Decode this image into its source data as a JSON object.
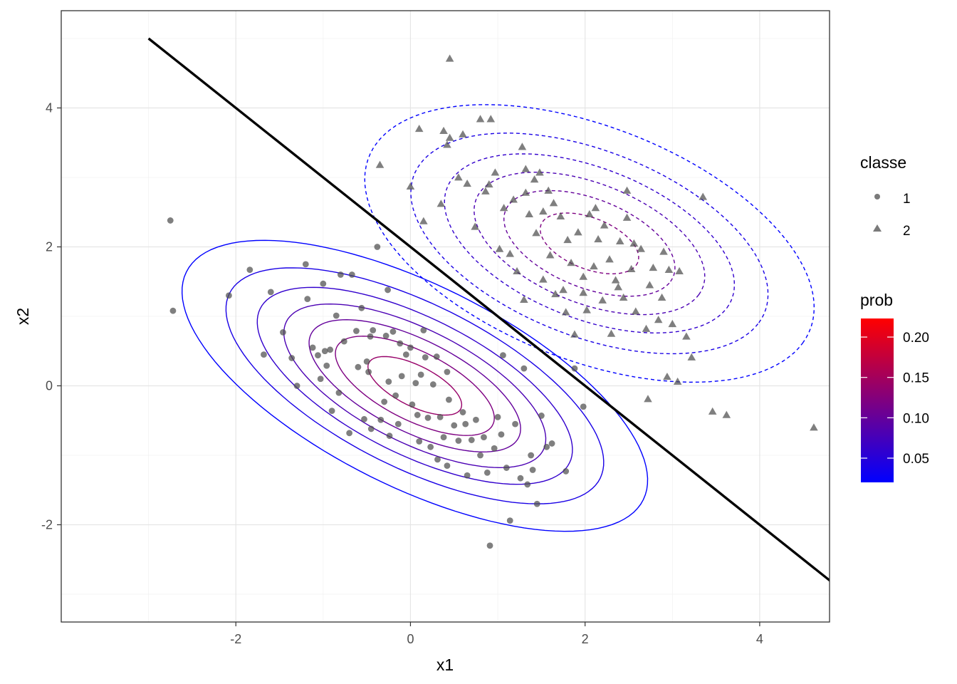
{
  "chart_data": {
    "type": "scatter",
    "xlabel": "x1",
    "ylabel": "x2",
    "xlim": [
      -4.0,
      4.8
    ],
    "ylim": [
      -3.4,
      5.4
    ],
    "x_ticks": [
      -2,
      0,
      2,
      4
    ],
    "y_ticks": [
      -2,
      0,
      2,
      4
    ],
    "x_tick_labels": [
      "-2",
      "0",
      "2",
      "4"
    ],
    "y_tick_labels": [
      "-2",
      "0",
      "2",
      "4"
    ],
    "grid": true,
    "legend_position": "right",
    "decision_boundary": {
      "x": [
        -3,
        5
      ],
      "y": [
        5,
        -3
      ],
      "color": "#000000"
    },
    "series": [
      {
        "name": "1",
        "marker": "circle",
        "color": "#4d4d4d",
        "points": [
          [
            -2.75,
            2.38
          ],
          [
            -2.72,
            1.08
          ],
          [
            -2.08,
            1.3
          ],
          [
            -1.84,
            1.67
          ],
          [
            -1.68,
            0.45
          ],
          [
            -1.6,
            1.35
          ],
          [
            -1.46,
            0.77
          ],
          [
            -1.36,
            0.4
          ],
          [
            -1.3,
            0.0
          ],
          [
            -1.2,
            1.75
          ],
          [
            -1.18,
            1.25
          ],
          [
            -1.12,
            0.55
          ],
          [
            -1.06,
            0.44
          ],
          [
            -1.03,
            0.1
          ],
          [
            -1.0,
            1.47
          ],
          [
            -0.98,
            0.5
          ],
          [
            -0.96,
            0.29
          ],
          [
            -0.92,
            0.52
          ],
          [
            -0.9,
            -0.36
          ],
          [
            -0.85,
            1.01
          ],
          [
            -0.8,
            1.6
          ],
          [
            -0.76,
            0.64
          ],
          [
            -0.7,
            -0.68
          ],
          [
            -0.67,
            1.6
          ],
          [
            -0.62,
            0.79
          ],
          [
            -0.6,
            0.27
          ],
          [
            -0.56,
            1.12
          ],
          [
            -0.53,
            -0.48
          ],
          [
            -0.48,
            0.2
          ],
          [
            -0.46,
            0.71
          ],
          [
            -0.45,
            -0.62
          ],
          [
            -0.43,
            0.8
          ],
          [
            -0.38,
            2.0
          ],
          [
            -0.34,
            -0.49
          ],
          [
            -0.3,
            -0.23
          ],
          [
            -0.28,
            0.72
          ],
          [
            -0.26,
            1.38
          ],
          [
            -0.25,
            0.06
          ],
          [
            -0.24,
            -0.72
          ],
          [
            -0.2,
            0.78
          ],
          [
            -0.17,
            -0.14
          ],
          [
            -0.14,
            -0.55
          ],
          [
            -0.12,
            0.61
          ],
          [
            -0.1,
            0.14
          ],
          [
            -0.05,
            0.45
          ],
          [
            0.0,
            0.55
          ],
          [
            0.02,
            -0.27
          ],
          [
            0.06,
            0.04
          ],
          [
            0.08,
            -0.42
          ],
          [
            0.1,
            -0.8
          ],
          [
            0.12,
            0.16
          ],
          [
            0.17,
            0.41
          ],
          [
            0.2,
            -0.46
          ],
          [
            0.23,
            -0.88
          ],
          [
            0.26,
            0.02
          ],
          [
            0.3,
            0.42
          ],
          [
            0.31,
            -1.06
          ],
          [
            0.34,
            -0.45
          ],
          [
            0.38,
            -0.74
          ],
          [
            0.42,
            -1.15
          ],
          [
            0.44,
            -0.2
          ],
          [
            0.5,
            -0.57
          ],
          [
            0.55,
            -0.79
          ],
          [
            0.6,
            -0.38
          ],
          [
            0.63,
            -0.55
          ],
          [
            0.65,
            -1.29
          ],
          [
            0.7,
            -0.78
          ],
          [
            0.75,
            -0.49
          ],
          [
            0.8,
            -1.0
          ],
          [
            0.84,
            -0.74
          ],
          [
            0.88,
            -1.25
          ],
          [
            0.91,
            -2.3
          ],
          [
            0.96,
            -0.9
          ],
          [
            1.0,
            -0.45
          ],
          [
            1.04,
            -0.7
          ],
          [
            1.06,
            0.44
          ],
          [
            1.1,
            -1.18
          ],
          [
            1.14,
            -1.94
          ],
          [
            1.2,
            -0.55
          ],
          [
            1.26,
            -1.33
          ],
          [
            1.3,
            0.25
          ],
          [
            1.34,
            -1.42
          ],
          [
            1.38,
            -1.0
          ],
          [
            1.4,
            -1.21
          ],
          [
            1.45,
            -1.7
          ],
          [
            1.5,
            -0.43
          ],
          [
            1.56,
            -0.88
          ],
          [
            1.62,
            -0.83
          ],
          [
            1.88,
            0.25
          ],
          [
            1.98,
            -0.3
          ],
          [
            1.78,
            -1.23
          ],
          [
            0.15,
            0.8
          ],
          [
            -0.5,
            0.35
          ],
          [
            0.42,
            0.2
          ],
          [
            -0.82,
            -0.1
          ]
        ]
      },
      {
        "name": "2",
        "marker": "triangle",
        "color": "#4d4d4d",
        "points": [
          [
            -0.35,
            3.18
          ],
          [
            0.0,
            2.87
          ],
          [
            0.1,
            3.7
          ],
          [
            0.15,
            2.37
          ],
          [
            0.35,
            2.62
          ],
          [
            0.38,
            3.67
          ],
          [
            0.42,
            3.47
          ],
          [
            0.45,
            3.57
          ],
          [
            0.45,
            4.71
          ],
          [
            0.55,
            3.0
          ],
          [
            0.6,
            3.62
          ],
          [
            0.65,
            2.91
          ],
          [
            0.74,
            2.29
          ],
          [
            0.8,
            3.84
          ],
          [
            0.86,
            2.8
          ],
          [
            0.9,
            2.9
          ],
          [
            0.92,
            3.84
          ],
          [
            0.97,
            3.07
          ],
          [
            1.02,
            1.97
          ],
          [
            1.07,
            2.56
          ],
          [
            1.14,
            1.9
          ],
          [
            1.18,
            2.68
          ],
          [
            1.22,
            1.65
          ],
          [
            1.28,
            3.44
          ],
          [
            1.3,
            1.24
          ],
          [
            1.32,
            3.12
          ],
          [
            1.36,
            2.47
          ],
          [
            1.42,
            2.97
          ],
          [
            1.44,
            2.2
          ],
          [
            1.48,
            3.07
          ],
          [
            1.52,
            2.51
          ],
          [
            1.58,
            2.81
          ],
          [
            1.6,
            1.88
          ],
          [
            1.64,
            2.63
          ],
          [
            1.66,
            1.32
          ],
          [
            1.72,
            2.44
          ],
          [
            1.75,
            1.38
          ],
          [
            1.8,
            2.1
          ],
          [
            1.84,
            1.77
          ],
          [
            1.88,
            0.74
          ],
          [
            1.92,
            2.21
          ],
          [
            1.98,
            1.57
          ],
          [
            2.02,
            1.09
          ],
          [
            2.05,
            2.47
          ],
          [
            2.1,
            1.72
          ],
          [
            2.15,
            2.11
          ],
          [
            2.2,
            1.23
          ],
          [
            2.22,
            2.31
          ],
          [
            2.28,
            1.82
          ],
          [
            2.3,
            0.75
          ],
          [
            2.35,
            1.52
          ],
          [
            2.4,
            2.08
          ],
          [
            2.44,
            1.27
          ],
          [
            2.48,
            2.42
          ],
          [
            2.53,
            1.68
          ],
          [
            2.58,
            1.07
          ],
          [
            2.64,
            1.97
          ],
          [
            2.7,
            0.82
          ],
          [
            2.74,
            1.45
          ],
          [
            2.78,
            1.7
          ],
          [
            2.84,
            0.95
          ],
          [
            2.88,
            1.27
          ],
          [
            2.9,
            1.93
          ],
          [
            2.96,
            1.67
          ],
          [
            3.0,
            0.89
          ],
          [
            3.08,
            1.65
          ],
          [
            3.16,
            0.71
          ],
          [
            3.22,
            0.41
          ],
          [
            3.35,
            2.72
          ],
          [
            3.46,
            -0.37
          ],
          [
            3.62,
            -0.42
          ],
          [
            4.62,
            -0.6
          ],
          [
            2.72,
            -0.19
          ],
          [
            2.94,
            0.13
          ],
          [
            3.06,
            0.06
          ],
          [
            2.48,
            2.81
          ],
          [
            2.56,
            2.05
          ],
          [
            1.52,
            1.53
          ],
          [
            1.32,
            2.78
          ],
          [
            1.98,
            1.34
          ],
          [
            2.38,
            1.42
          ],
          [
            2.12,
            2.56
          ],
          [
            1.78,
            1.06
          ]
        ]
      }
    ],
    "contours": [
      {
        "name": "1",
        "line_style": "solid",
        "center": [
          0.05,
          0.0
        ],
        "axis_angle_deg": -34.7,
        "std_major": 1.54,
        "std_minor": 0.68,
        "levels": [
          0.02,
          0.04,
          0.06,
          0.08,
          0.1,
          0.12,
          0.14,
          0.16,
          0.18,
          0.2
        ]
      },
      {
        "name": "2",
        "line_style": "dashed",
        "center": [
          2.05,
          2.05
        ],
        "axis_angle_deg": -30.5,
        "std_major": 1.46,
        "std_minor": 0.83,
        "levels": [
          0.02,
          0.04,
          0.06,
          0.08,
          0.1,
          0.12,
          0.14,
          0.16,
          0.18,
          0.2
        ]
      }
    ],
    "color_scale": {
      "title": "prob",
      "low_color": "#0000ff",
      "high_color": "#ff0000",
      "min": 0.02,
      "max": 0.223,
      "breaks": [
        0.05,
        0.1,
        0.15,
        0.2
      ],
      "break_labels": [
        "0.05",
        "0.10",
        "0.15",
        "0.20"
      ]
    },
    "shape_legend": {
      "title": "classe",
      "entries": [
        {
          "label": "1",
          "marker": "circle"
        },
        {
          "label": "2",
          "marker": "triangle"
        }
      ]
    }
  }
}
